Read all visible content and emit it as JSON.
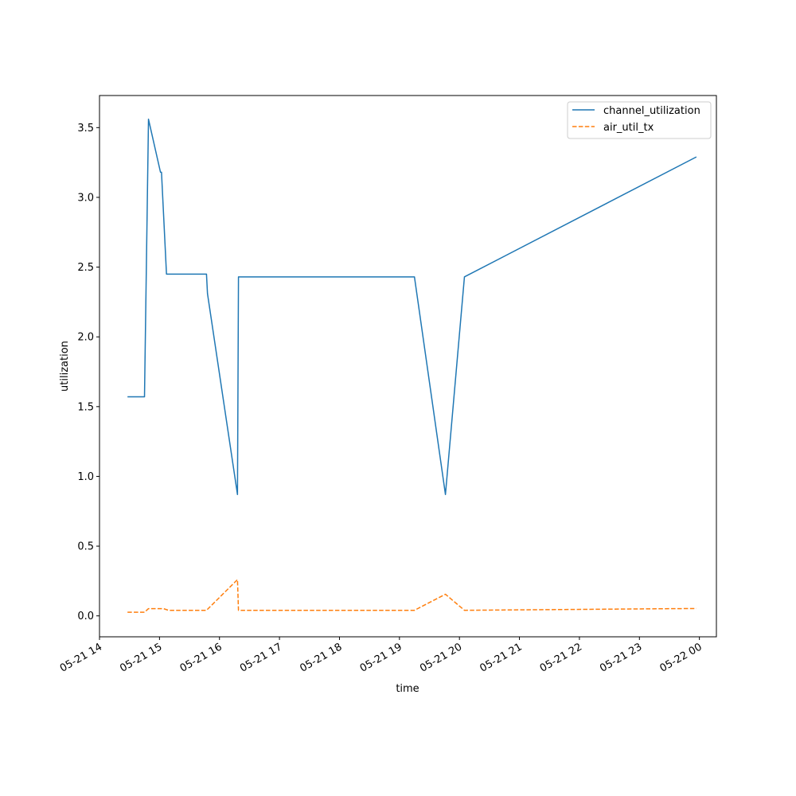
{
  "chart_data": {
    "type": "line",
    "title": "",
    "xlabel": "time",
    "ylabel": "utilization",
    "xlim": [
      "05-21 14:00",
      "05-22 00:17"
    ],
    "ylim": [
      -0.15,
      3.73
    ],
    "x_ticks": [
      {
        "t": "05-21 14:00",
        "label": "05-21 14"
      },
      {
        "t": "05-21 15:00",
        "label": "05-21 15"
      },
      {
        "t": "05-21 16:00",
        "label": "05-21 16"
      },
      {
        "t": "05-21 17:00",
        "label": "05-21 17"
      },
      {
        "t": "05-21 18:00",
        "label": "05-21 18"
      },
      {
        "t": "05-21 19:00",
        "label": "05-21 19"
      },
      {
        "t": "05-21 20:00",
        "label": "05-21 20"
      },
      {
        "t": "05-21 21:00",
        "label": "05-21 21"
      },
      {
        "t": "05-21 22:00",
        "label": "05-21 22"
      },
      {
        "t": "05-21 23:00",
        "label": "05-21 23"
      },
      {
        "t": "05-22 00:00",
        "label": "05-22 00"
      }
    ],
    "y_ticks": [
      {
        "v": 0.0,
        "label": "0.0"
      },
      {
        "v": 0.5,
        "label": "0.5"
      },
      {
        "v": 1.0,
        "label": "1.0"
      },
      {
        "v": 1.5,
        "label": "1.5"
      },
      {
        "v": 2.0,
        "label": "2.0"
      },
      {
        "v": 2.5,
        "label": "2.5"
      },
      {
        "v": 3.0,
        "label": "3.0"
      },
      {
        "v": 3.5,
        "label": "3.5"
      }
    ],
    "grid": false,
    "legend_position": "top-right",
    "series": [
      {
        "name": "channel_utilization",
        "color": "#1f77b4",
        "style": "solid",
        "points": [
          {
            "x": "05-21 14:28",
            "y": 1.57
          },
          {
            "x": "05-21 14:45",
            "y": 1.57
          },
          {
            "x": "05-21 14:49",
            "y": 3.56
          },
          {
            "x": "05-21 15:01",
            "y": 3.18
          },
          {
            "x": "05-21 15:02",
            "y": 3.18
          },
          {
            "x": "05-21 15:07",
            "y": 2.45
          },
          {
            "x": "05-21 15:47",
            "y": 2.45
          },
          {
            "x": "05-21 15:48",
            "y": 2.31
          },
          {
            "x": "05-21 16:18",
            "y": 0.87
          },
          {
            "x": "05-21 16:19",
            "y": 2.43
          },
          {
            "x": "05-21 19:15",
            "y": 2.43
          },
          {
            "x": "05-21 19:46",
            "y": 0.87
          },
          {
            "x": "05-21 20:05",
            "y": 2.43
          },
          {
            "x": "05-21 23:57",
            "y": 3.29
          }
        ]
      },
      {
        "name": "air_util_tx",
        "color": "#ff7f0e",
        "style": "dashed",
        "points": [
          {
            "x": "05-21 14:28",
            "y": 0.026
          },
          {
            "x": "05-21 14:45",
            "y": 0.026
          },
          {
            "x": "05-21 14:49",
            "y": 0.052
          },
          {
            "x": "05-21 15:04",
            "y": 0.052
          },
          {
            "x": "05-21 15:09",
            "y": 0.04
          },
          {
            "x": "05-21 15:47",
            "y": 0.04
          },
          {
            "x": "05-21 16:18",
            "y": 0.26
          },
          {
            "x": "05-21 16:19",
            "y": 0.04
          },
          {
            "x": "05-21 19:15",
            "y": 0.04
          },
          {
            "x": "05-21 19:46",
            "y": 0.155
          },
          {
            "x": "05-21 20:05",
            "y": 0.04
          },
          {
            "x": "05-21 23:57",
            "y": 0.053
          }
        ]
      }
    ]
  }
}
